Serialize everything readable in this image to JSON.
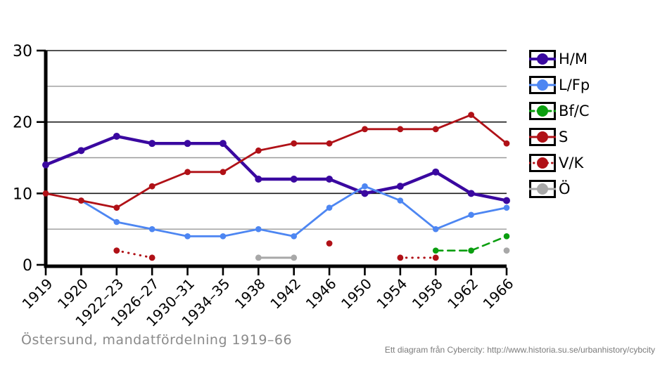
{
  "figure": {
    "caption": "Östersund, mandatfördelning 1919–66",
    "attribution": "Ett diagram från Cybercity: http://www.historia.su.se/urbanhistory/cybcity"
  },
  "colors": {
    "hm": "#3a08a0",
    "lfp": "#4d86f2",
    "bfc": "#0a9e0f",
    "s": "#b01117",
    "vk": "#b01117",
    "o": "#a8a8a8",
    "axis": "#000000",
    "grid_major": "#1a1a1a",
    "grid_minor": "#999999",
    "tick_label": "#000000",
    "caption_text": "#8a8a8a",
    "attribution_text": "#7b7b7b"
  },
  "chart_data": {
    "type": "line",
    "title": "Östersund, mandatfördelning 1919–66",
    "xlabel": "",
    "ylabel": "",
    "ylim": [
      0,
      30
    ],
    "yticks": [
      0,
      10,
      20,
      30
    ],
    "grid_major_at": [
      10,
      20,
      30
    ],
    "grid_minor_at": [
      5,
      15,
      25
    ],
    "legend_position": "right",
    "categories": [
      "1919",
      "1920",
      "1922–23",
      "1926–27",
      "1930–31",
      "1934–35",
      "1938",
      "1942",
      "1946",
      "1950",
      "1954",
      "1958",
      "1962",
      "1966"
    ],
    "series": [
      {
        "name": "H/M",
        "color_key": "hm",
        "style": "solid",
        "line_width": 4.4,
        "marker_r": 5.0,
        "values": [
          14,
          16,
          18,
          17,
          17,
          17,
          12,
          12,
          12,
          10,
          11,
          13,
          10,
          9
        ]
      },
      {
        "name": "L/Fp",
        "color_key": "lfp",
        "style": "solid",
        "line_width": 2.8,
        "marker_r": 4.3,
        "values": [
          null,
          9,
          6,
          5,
          4,
          4,
          5,
          4,
          8,
          11,
          9,
          5,
          7,
          8
        ]
      },
      {
        "name": "Bf/C",
        "color_key": "bfc",
        "style": "dashed",
        "line_width": 2.6,
        "marker_r": 4.3,
        "values": [
          null,
          null,
          null,
          null,
          null,
          null,
          null,
          null,
          null,
          null,
          null,
          2,
          2,
          4
        ]
      },
      {
        "name": "S",
        "color_key": "s",
        "style": "solid",
        "line_width": 2.8,
        "marker_r": 4.4,
        "values": [
          10,
          9,
          8,
          11,
          13,
          13,
          16,
          17,
          17,
          19,
          19,
          19,
          21,
          17
        ]
      },
      {
        "name": "V/K",
        "color_key": "vk",
        "style": "dotted",
        "line_width": 3.0,
        "marker_r": 4.4,
        "values": [
          null,
          null,
          2,
          1,
          null,
          null,
          null,
          null,
          3,
          null,
          1,
          1,
          null,
          null
        ]
      },
      {
        "name": "Ö",
        "color_key": "o",
        "style": "solid",
        "line_width": 3.0,
        "marker_r": 4.4,
        "values": [
          null,
          null,
          null,
          null,
          null,
          null,
          1,
          1,
          null,
          null,
          null,
          null,
          null,
          2
        ]
      }
    ]
  }
}
